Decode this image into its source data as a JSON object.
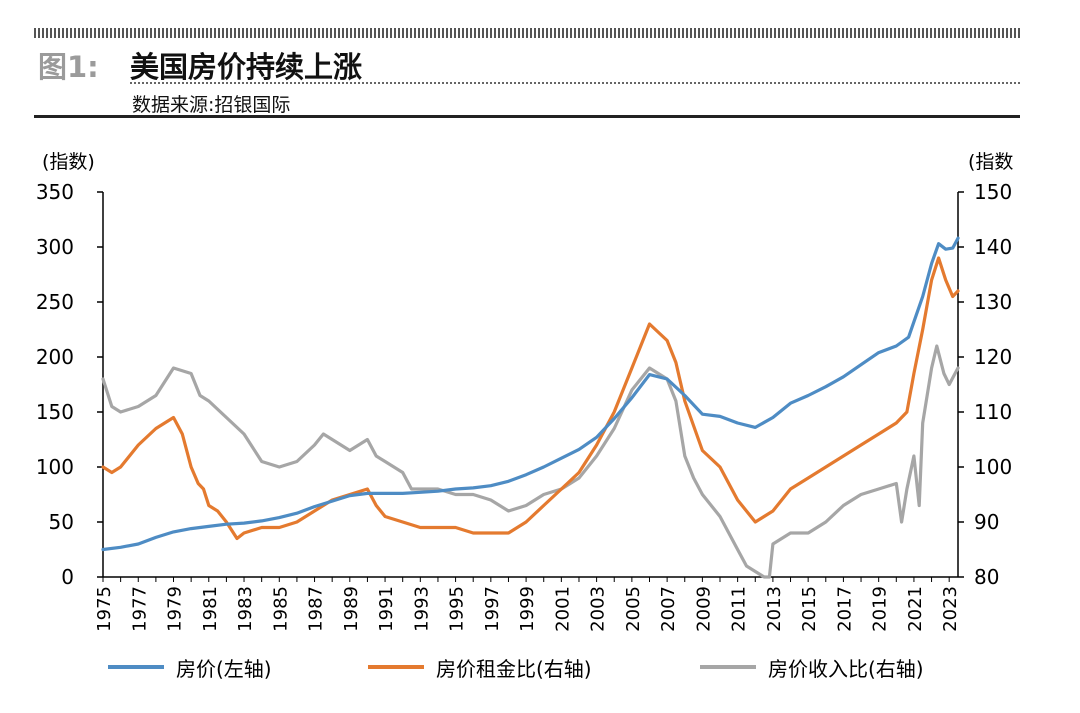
{
  "header": {
    "figure_label": "图1:",
    "title": "美国房价持续上涨",
    "source": "数据来源:招银国际"
  },
  "colors": {
    "house_price": "#4e8cc4",
    "price_rent": "#e47a2f",
    "price_income": "#a6a6a6",
    "axis": "#000000"
  },
  "chart_data": {
    "type": "line",
    "left_axis": {
      "unit_label": "(指数)",
      "ylim": [
        0,
        350
      ],
      "ticks": [
        0,
        50,
        100,
        150,
        200,
        250,
        300,
        350
      ]
    },
    "right_axis": {
      "unit_label": "(指数",
      "ylim": [
        80,
        150
      ],
      "ticks": [
        80,
        90,
        100,
        110,
        120,
        130,
        140,
        150
      ]
    },
    "x_axis": {
      "xlim": [
        1975,
        2023.5
      ],
      "tick_labels": [
        "1975",
        "1977",
        "1979",
        "1981",
        "1983",
        "1985",
        "1987",
        "1989",
        "1991",
        "1993",
        "1995",
        "1997",
        "1999",
        "2001",
        "2003",
        "2005",
        "2007",
        "2009",
        "2011",
        "2013",
        "2015",
        "2017",
        "2019",
        "2021",
        "2023"
      ]
    },
    "grid": false,
    "legend_position": "bottom",
    "series": [
      {
        "name": "房价(左轴)",
        "axis": "left",
        "points": [
          [
            1975,
            25
          ],
          [
            1976,
            27
          ],
          [
            1977,
            30
          ],
          [
            1978,
            36
          ],
          [
            1979,
            41
          ],
          [
            1980,
            44
          ],
          [
            1981,
            46
          ],
          [
            1982,
            48
          ],
          [
            1983,
            49
          ],
          [
            1984,
            51
          ],
          [
            1985,
            54
          ],
          [
            1986,
            58
          ],
          [
            1987,
            64
          ],
          [
            1988,
            69
          ],
          [
            1989,
            74
          ],
          [
            1990,
            76
          ],
          [
            1991,
            76
          ],
          [
            1992,
            76
          ],
          [
            1993,
            77
          ],
          [
            1994,
            78
          ],
          [
            1995,
            80
          ],
          [
            1996,
            81
          ],
          [
            1997,
            83
          ],
          [
            1998,
            87
          ],
          [
            1999,
            93
          ],
          [
            2000,
            100
          ],
          [
            2001,
            108
          ],
          [
            2002,
            116
          ],
          [
            2003,
            127
          ],
          [
            2004,
            144
          ],
          [
            2005,
            163
          ],
          [
            2006,
            184
          ],
          [
            2007,
            180
          ],
          [
            2008,
            165
          ],
          [
            2009,
            148
          ],
          [
            2010,
            146
          ],
          [
            2011,
            140
          ],
          [
            2012,
            136
          ],
          [
            2013,
            145
          ],
          [
            2014,
            158
          ],
          [
            2015,
            165
          ],
          [
            2016,
            173
          ],
          [
            2017,
            182
          ],
          [
            2018,
            193
          ],
          [
            2019,
            204
          ],
          [
            2020,
            210
          ],
          [
            2020.7,
            218
          ],
          [
            2021,
            232
          ],
          [
            2021.5,
            255
          ],
          [
            2022,
            285
          ],
          [
            2022.4,
            303
          ],
          [
            2022.8,
            298
          ],
          [
            2023.2,
            299
          ],
          [
            2023.5,
            308
          ]
        ]
      },
      {
        "name": "房价租金比(右轴)",
        "axis": "right",
        "points": [
          [
            1975,
            100
          ],
          [
            1975.5,
            99
          ],
          [
            1976,
            100
          ],
          [
            1977,
            104
          ],
          [
            1978,
            107
          ],
          [
            1979,
            109
          ],
          [
            1979.5,
            106
          ],
          [
            1980,
            100
          ],
          [
            1980.4,
            97
          ],
          [
            1980.7,
            96
          ],
          [
            1981,
            93
          ],
          [
            1981.5,
            92
          ],
          [
            1982,
            90
          ],
          [
            1982.6,
            87
          ],
          [
            1983,
            88
          ],
          [
            1984,
            89
          ],
          [
            1985,
            89
          ],
          [
            1986,
            90
          ],
          [
            1987,
            92
          ],
          [
            1988,
            94
          ],
          [
            1989,
            95
          ],
          [
            1990,
            96
          ],
          [
            1990.5,
            93
          ],
          [
            1991,
            91
          ],
          [
            1992,
            90
          ],
          [
            1993,
            89
          ],
          [
            1994,
            89
          ],
          [
            1995,
            89
          ],
          [
            1996,
            88
          ],
          [
            1997,
            88
          ],
          [
            1998,
            88
          ],
          [
            1999,
            90
          ],
          [
            2000,
            93
          ],
          [
            2001,
            96
          ],
          [
            2002,
            99
          ],
          [
            2003,
            104
          ],
          [
            2004,
            110
          ],
          [
            2005,
            118
          ],
          [
            2005.5,
            122
          ],
          [
            2006,
            126
          ],
          [
            2007,
            123
          ],
          [
            2007.5,
            119
          ],
          [
            2008,
            112
          ],
          [
            2009,
            103
          ],
          [
            2010,
            100
          ],
          [
            2011,
            94
          ],
          [
            2012,
            90
          ],
          [
            2013,
            92
          ],
          [
            2014,
            96
          ],
          [
            2015,
            98
          ],
          [
            2016,
            100
          ],
          [
            2017,
            102
          ],
          [
            2018,
            104
          ],
          [
            2019,
            106
          ],
          [
            2020,
            108
          ],
          [
            2020.6,
            110
          ],
          [
            2021,
            117
          ],
          [
            2021.5,
            125
          ],
          [
            2022,
            134
          ],
          [
            2022.4,
            138
          ],
          [
            2022.8,
            134
          ],
          [
            2023.2,
            131
          ],
          [
            2023.5,
            132
          ]
        ]
      },
      {
        "name": "房价收入比(右轴)",
        "axis": "right",
        "points": [
          [
            1975,
            116
          ],
          [
            1975.5,
            111
          ],
          [
            1976,
            110
          ],
          [
            1977,
            111
          ],
          [
            1978,
            113
          ],
          [
            1979,
            118
          ],
          [
            1980,
            117
          ],
          [
            1980.5,
            113
          ],
          [
            1981,
            112
          ],
          [
            1982,
            109
          ],
          [
            1983,
            106
          ],
          [
            1984,
            101
          ],
          [
            1985,
            100
          ],
          [
            1986,
            101
          ],
          [
            1987,
            104
          ],
          [
            1987.5,
            106
          ],
          [
            1988,
            105
          ],
          [
            1989,
            103
          ],
          [
            1990,
            105
          ],
          [
            1990.5,
            102
          ],
          [
            1991,
            101
          ],
          [
            1992,
            99
          ],
          [
            1992.5,
            96
          ],
          [
            1993,
            96
          ],
          [
            1994,
            96
          ],
          [
            1995,
            95
          ],
          [
            1996,
            95
          ],
          [
            1997,
            94
          ],
          [
            1998,
            92
          ],
          [
            1999,
            93
          ],
          [
            2000,
            95
          ],
          [
            2001,
            96
          ],
          [
            2002,
            98
          ],
          [
            2003,
            102
          ],
          [
            2004,
            107
          ],
          [
            2005,
            114
          ],
          [
            2006,
            118
          ],
          [
            2007,
            116
          ],
          [
            2007.5,
            112
          ],
          [
            2008,
            102
          ],
          [
            2008.5,
            98
          ],
          [
            2009,
            95
          ],
          [
            2010,
            91
          ],
          [
            2011,
            85
          ],
          [
            2011.5,
            82
          ],
          [
            2012,
            81
          ],
          [
            2012.5,
            80
          ],
          [
            2012.8,
            80
          ],
          [
            2013,
            86
          ],
          [
            2014,
            88
          ],
          [
            2015,
            88
          ],
          [
            2016,
            90
          ],
          [
            2017,
            93
          ],
          [
            2018,
            95
          ],
          [
            2019,
            96
          ],
          [
            2020,
            97
          ],
          [
            2020.3,
            90
          ],
          [
            2020.6,
            96
          ],
          [
            2021,
            102
          ],
          [
            2021.3,
            93
          ],
          [
            2021.5,
            108
          ],
          [
            2022,
            118
          ],
          [
            2022.3,
            122
          ],
          [
            2022.7,
            117
          ],
          [
            2023,
            115
          ],
          [
            2023.5,
            118
          ]
        ]
      }
    ]
  }
}
